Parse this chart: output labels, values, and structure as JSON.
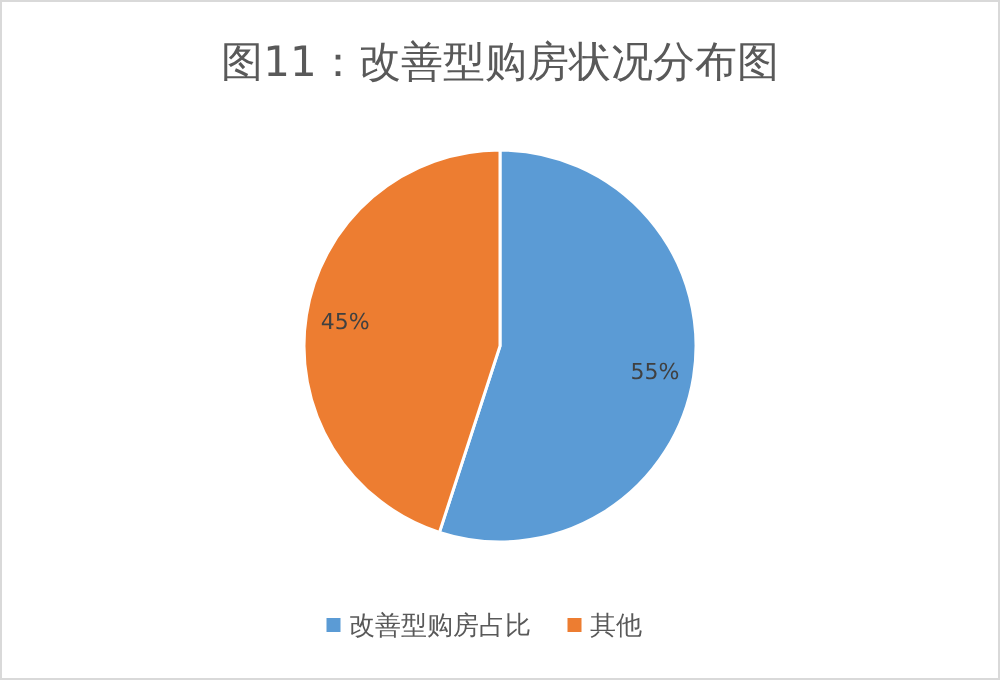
{
  "chart_data": {
    "type": "pie",
    "title": "图11：改善型购房状况分布图",
    "categories": [
      "改善型购房占比",
      "其他"
    ],
    "values": [
      55,
      45
    ],
    "colors": [
      "#5b9bd5",
      "#ed7d31"
    ],
    "value_labels": [
      "55%",
      "45%"
    ],
    "legend": "bottom"
  }
}
